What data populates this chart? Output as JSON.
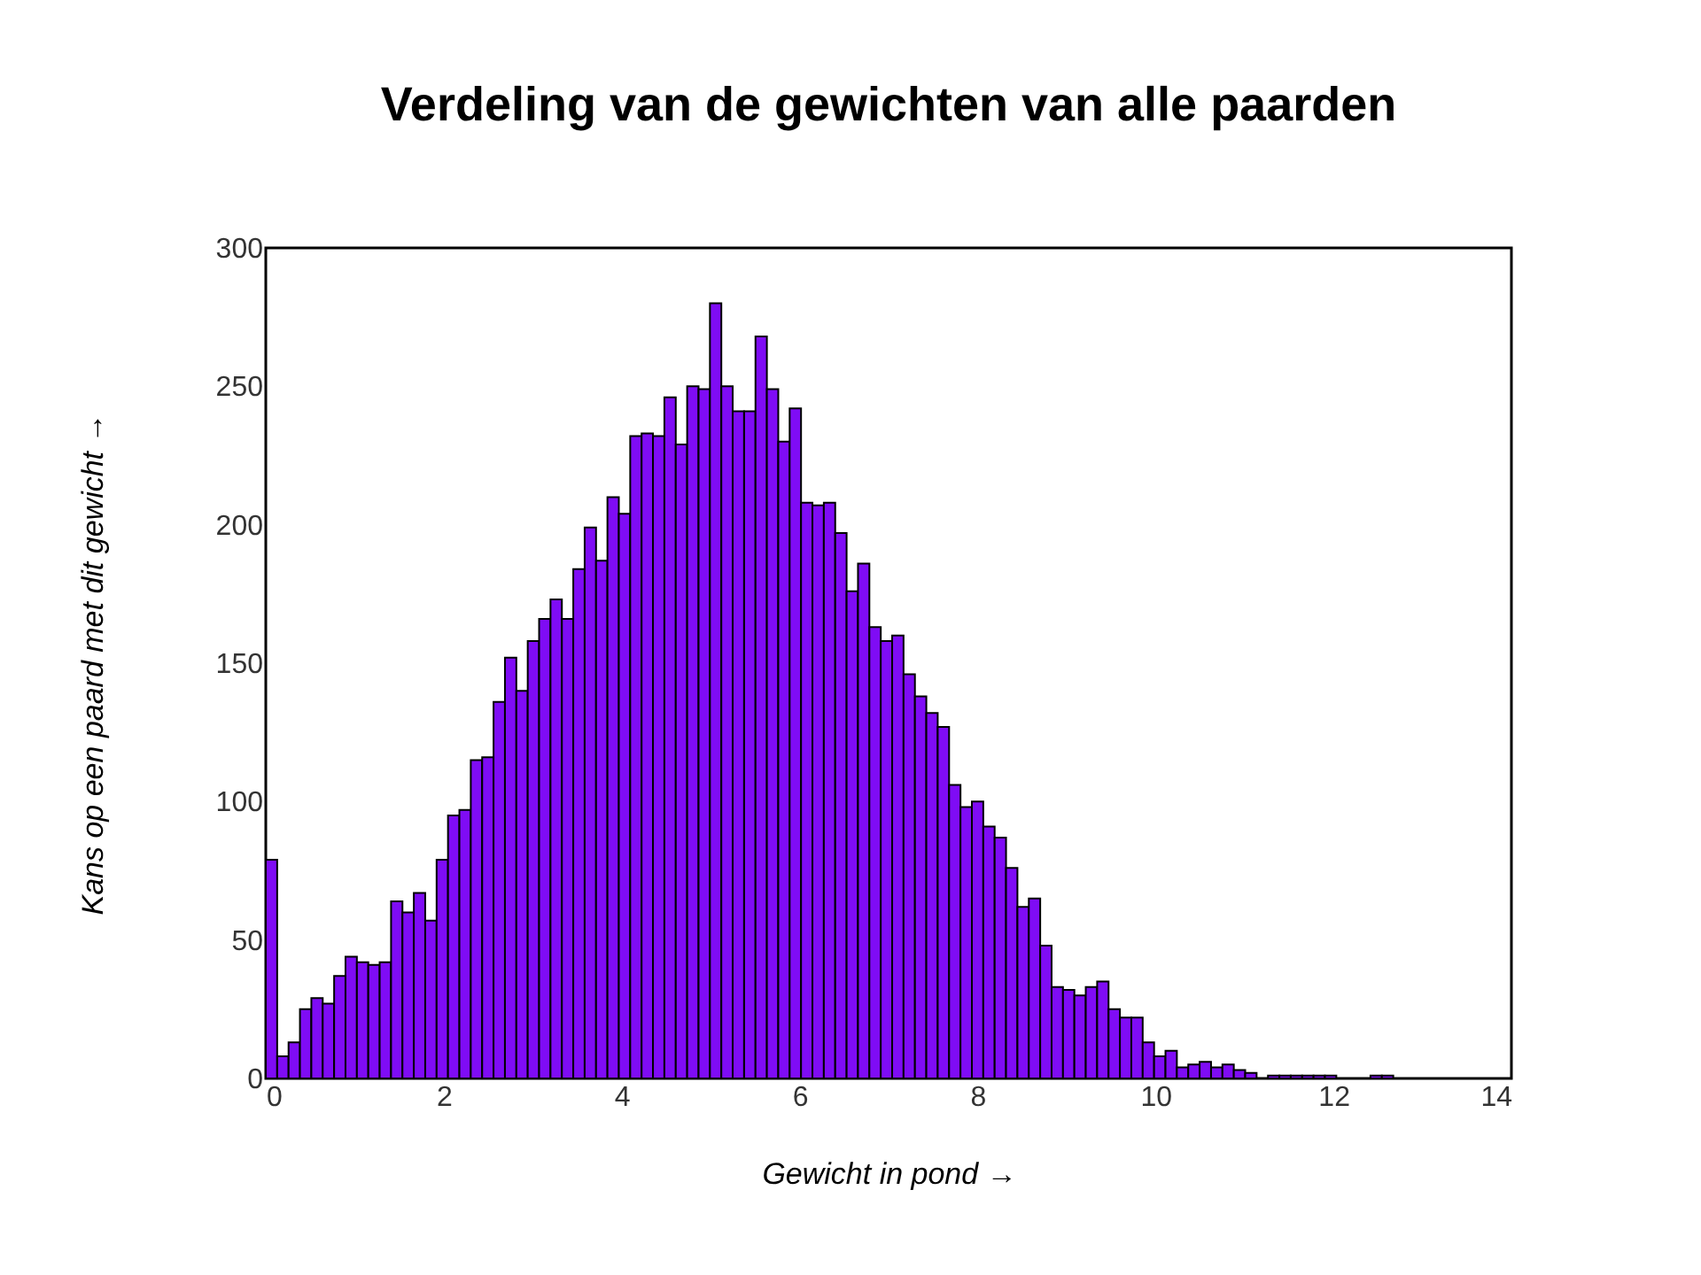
{
  "chart_data": {
    "type": "histogram",
    "title": "Verdeling van de gewichten van alle paarden",
    "xlabel": "Gewicht in pond →",
    "ylabel": "Kans op een paard met dit gewicht →",
    "color": "#7f0cf5",
    "bins": [
      0,
      0.128,
      0.256,
      0.384,
      0.512,
      0.64,
      0.768,
      0.896,
      1.024,
      1.152,
      1.28,
      1.408,
      1.536,
      1.664,
      1.792,
      1.92,
      2.048,
      2.176,
      2.304,
      2.432,
      2.56,
      2.688,
      2.816,
      2.944,
      3.072,
      3.2,
      3.328,
      3.456,
      3.584,
      3.712,
      3.84,
      3.968,
      4.096,
      4.224,
      4.352,
      4.48,
      4.608,
      4.736,
      4.864,
      4.992,
      5.12,
      5.248,
      5.376,
      5.504,
      5.632,
      5.76,
      5.888,
      6.016,
      6.144,
      6.272,
      6.4,
      6.528,
      6.656,
      6.784,
      6.912,
      7.04,
      7.168,
      7.296,
      7.424,
      7.552,
      7.68,
      7.808,
      7.936,
      8.064,
      8.192,
      8.32,
      8.448,
      8.576,
      8.704,
      8.832,
      8.96,
      9.088,
      9.216,
      9.344,
      9.472,
      9.6,
      9.728,
      9.856,
      9.984,
      10.112,
      10.24,
      10.368,
      10.496,
      10.624,
      10.752,
      10.88,
      11.008,
      11.136,
      11.264,
      11.392,
      11.52,
      11.648,
      11.776,
      11.904,
      12.032,
      12.16,
      12.288,
      12.416,
      12.544,
      12.672,
      12.8
    ],
    "values": [
      79,
      8,
      13,
      25,
      29,
      27,
      37,
      44,
      42,
      41,
      42,
      64,
      60,
      67,
      57,
      79,
      95,
      97,
      115,
      116,
      136,
      152,
      140,
      158,
      166,
      173,
      166,
      184,
      199,
      187,
      210,
      204,
      232,
      233,
      232,
      246,
      229,
      250,
      249,
      280,
      250,
      241,
      241,
      268,
      249,
      230,
      242,
      208,
      207,
      208,
      197,
      176,
      186,
      163,
      158,
      160,
      146,
      138,
      132,
      127,
      106,
      98,
      100,
      91,
      87,
      76,
      62,
      65,
      48,
      33,
      32,
      30,
      33,
      35,
      25,
      22,
      22,
      13,
      8,
      10,
      4,
      5,
      6,
      4,
      5,
      3,
      2,
      0,
      1,
      1,
      1,
      1,
      1,
      1,
      0,
      0,
      0,
      1,
      1,
      0
    ],
    "xlim": [
      0,
      14
    ],
    "xticks": [
      0,
      2,
      4,
      6,
      8,
      10,
      12,
      14
    ],
    "ylim": [
      0,
      300
    ],
    "yticks": [
      0,
      50,
      100,
      150,
      200,
      250,
      300
    ],
    "grid": false
  }
}
